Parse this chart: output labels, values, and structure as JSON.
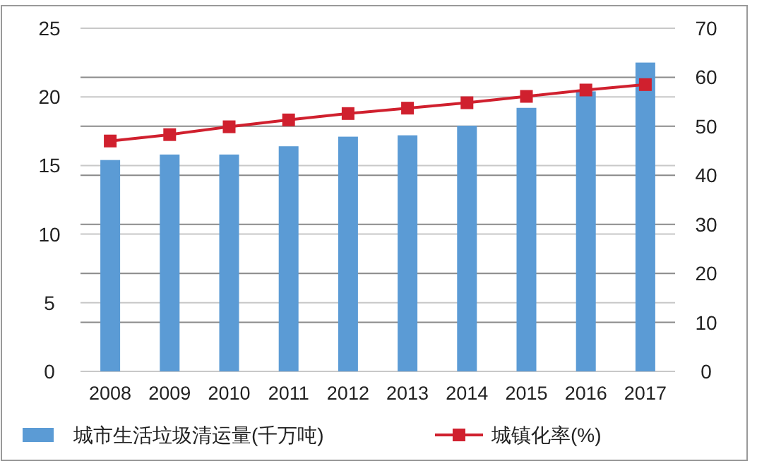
{
  "chart_data": {
    "type": "bar",
    "categories": [
      "2008",
      "2009",
      "2010",
      "2011",
      "2012",
      "2013",
      "2014",
      "2015",
      "2016",
      "2017"
    ],
    "ylim": [
      0,
      25
    ],
    "yticks": [
      0,
      5,
      10,
      15,
      20,
      25
    ],
    "y2lim": [
      0,
      70
    ],
    "y2ticks": [
      0,
      10,
      20,
      30,
      40,
      50,
      60,
      70
    ],
    "grid": true,
    "legend": "bottom",
    "marker": "square",
    "series": [
      {
        "name": "城市生活垃圾清运量(千万吨)",
        "color": "#5b9bd5",
        "values": [
          15.4,
          15.8,
          15.8,
          16.4,
          17.1,
          17.2,
          17.9,
          19.2,
          20.4,
          22.5
        ]
      },
      {
        "name": "城镇化率(%)",
        "type": "line",
        "axis": "y2",
        "color": "#d0202e",
        "values": [
          47.0,
          48.3,
          49.9,
          51.3,
          52.6,
          53.7,
          54.8,
          56.1,
          57.4,
          58.5
        ]
      }
    ]
  }
}
